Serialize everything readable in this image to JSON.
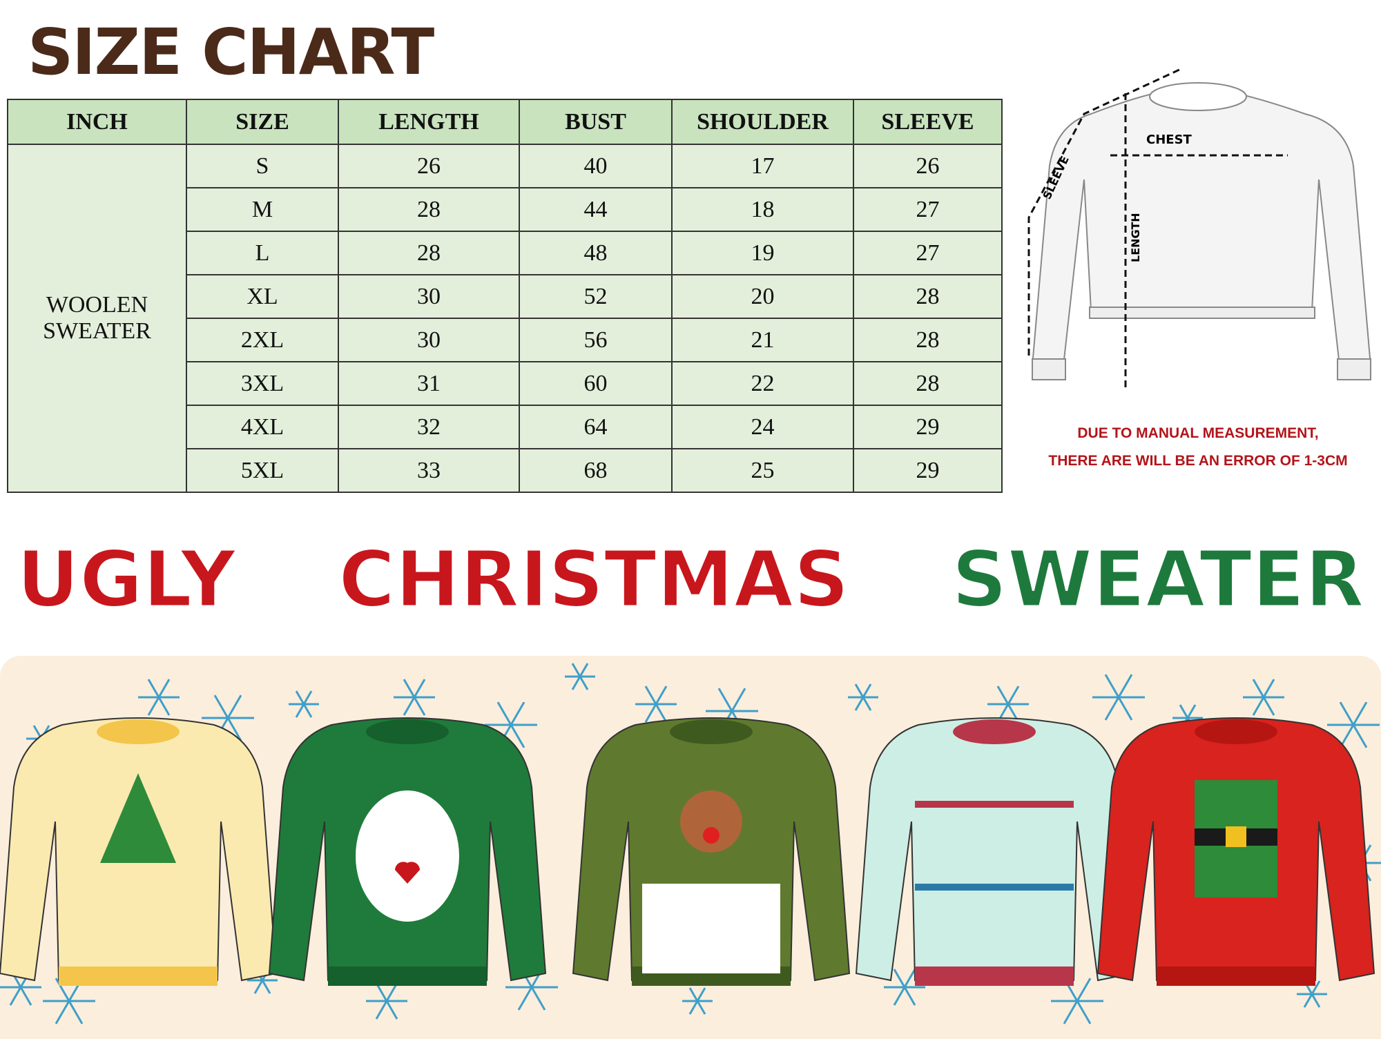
{
  "title": "SIZE CHART",
  "table": {
    "headers": [
      "INCH",
      "SIZE",
      "LENGTH",
      "BUST",
      "SHOULDER",
      "SLEEVE"
    ],
    "category": "WOOLEN SWEATER",
    "rows": [
      [
        "S",
        "26",
        "40",
        "17",
        "26"
      ],
      [
        "M",
        "28",
        "44",
        "18",
        "27"
      ],
      [
        "L",
        "28",
        "48",
        "19",
        "27"
      ],
      [
        "XL",
        "30",
        "52",
        "20",
        "28"
      ],
      [
        "2XL",
        "30",
        "56",
        "21",
        "28"
      ],
      [
        "3XL",
        "31",
        "60",
        "22",
        "28"
      ],
      [
        "4XL",
        "32",
        "64",
        "24",
        "29"
      ],
      [
        "5XL",
        "33",
        "68",
        "25",
        "29"
      ]
    ]
  },
  "diagram": {
    "chest": "CHEST",
    "length": "LENGTH",
    "sleeve": "SLEEVE"
  },
  "note": {
    "line1": "DUE TO MANUAL MEASUREMENT,",
    "line2": "THERE ARE WILL BE AN ERROR OF 1-3CM"
  },
  "banner": {
    "word1": "UGLY",
    "word2": "CHRISTMAS",
    "word3": "SWEATER"
  },
  "colors": {
    "title": "#4b2a1a",
    "header_bg": "#c9e3bf",
    "cell_bg": "#e3efdb",
    "note": "#b3141a",
    "red": "#c8161d",
    "green": "#1d7a3c",
    "bottom_bg": "#fbeedd",
    "snowflake": "#3f9fc9"
  },
  "sweaters": [
    "tree-sweater-icon",
    "polar-bear-sweater-icon",
    "reindeer-sweater-icon",
    "nordic-pattern-sweater-icon",
    "elf-sweater-icon"
  ]
}
